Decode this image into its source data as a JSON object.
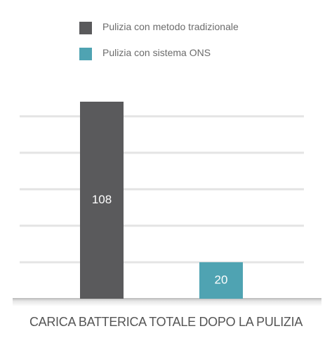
{
  "colors": {
    "series_traditional": "#5a5a5c",
    "series_ons": "#4fa3b2",
    "grid": "#e4e4e4",
    "bar_label": "#ffffff"
  },
  "legend": [
    {
      "label": "Pulizia con metodo tradizionale",
      "color": "#5a5a5c"
    },
    {
      "label": "Pulizia con sistema ONS",
      "color": "#4fa3b2"
    }
  ],
  "caption": "CARICA BATTERICA TOTALE DOPO LA PULIZIA",
  "chart_data": {
    "type": "bar",
    "title": "",
    "xlabel": "CARICA BATTERICA TOTALE DOPO LA PULIZIA",
    "ylabel": "",
    "categories": [
      "Pulizia con metodo tradizionale",
      "Pulizia con sistema ONS"
    ],
    "values": [
      108,
      20
    ],
    "data_labels": [
      "108",
      "20"
    ],
    "ylim": [
      0,
      108
    ],
    "gridlines": [
      20,
      40,
      60,
      80,
      100
    ],
    "grid": true,
    "y_axis_ticks_shown": false,
    "legend_position": "top"
  }
}
